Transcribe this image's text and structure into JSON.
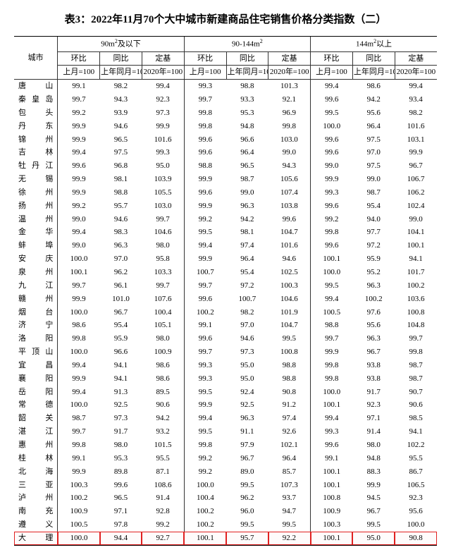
{
  "title": "表3：2022年11月70个大中城市新建商品住宅销售价格分类指数（二）",
  "header": {
    "city": "城市",
    "groups": [
      "90m²及以下",
      "90-144m²",
      "144m²以上"
    ],
    "sub": {
      "mom": "环比",
      "yoy": "同比",
      "base": "定基"
    },
    "line3": {
      "mom": "上月=100",
      "yoy": "上年同月=100",
      "base": "2020年=100"
    }
  },
  "highlight_city": "大 理",
  "style": {
    "background_color": "#ffffff",
    "text_color": "#000000",
    "rule_color": "#333333",
    "highlight_color": "#e02020",
    "title_fontsize": 15,
    "body_fontsize": 11
  },
  "rows": [
    {
      "city": "唐 山",
      "v": [
        "99.1",
        "98.2",
        "99.4",
        "99.3",
        "98.8",
        "101.3",
        "99.4",
        "98.6",
        "99.4"
      ]
    },
    {
      "city": "秦皇岛",
      "v": [
        "99.7",
        "94.3",
        "92.3",
        "99.7",
        "93.3",
        "92.1",
        "99.6",
        "94.2",
        "93.4"
      ]
    },
    {
      "city": "包 头",
      "v": [
        "99.2",
        "93.9",
        "97.3",
        "99.8",
        "95.3",
        "96.9",
        "99.5",
        "95.6",
        "98.2"
      ]
    },
    {
      "city": "丹 东",
      "v": [
        "99.9",
        "94.6",
        "99.9",
        "99.8",
        "94.8",
        "99.8",
        "100.0",
        "96.4",
        "101.6"
      ]
    },
    {
      "city": "锦 州",
      "v": [
        "99.9",
        "96.5",
        "101.6",
        "99.6",
        "96.6",
        "103.0",
        "99.6",
        "97.5",
        "103.1"
      ]
    },
    {
      "city": "吉 林",
      "v": [
        "99.4",
        "97.5",
        "99.3",
        "99.6",
        "96.4",
        "99.0",
        "99.6",
        "97.0",
        "99.9"
      ]
    },
    {
      "city": "牡丹江",
      "v": [
        "99.6",
        "96.8",
        "95.0",
        "98.8",
        "96.5",
        "94.3",
        "99.0",
        "97.5",
        "96.7"
      ]
    },
    {
      "city": "无 锡",
      "v": [
        "99.9",
        "98.1",
        "103.9",
        "99.9",
        "98.7",
        "105.6",
        "99.9",
        "99.0",
        "106.7"
      ]
    },
    {
      "city": "徐 州",
      "v": [
        "99.9",
        "98.8",
        "105.5",
        "99.6",
        "99.0",
        "107.4",
        "99.3",
        "98.7",
        "106.2"
      ]
    },
    {
      "city": "扬 州",
      "v": [
        "99.2",
        "95.7",
        "103.0",
        "99.9",
        "96.3",
        "103.8",
        "99.6",
        "95.4",
        "102.4"
      ]
    },
    {
      "city": "温 州",
      "v": [
        "99.0",
        "94.6",
        "99.7",
        "99.2",
        "94.2",
        "99.6",
        "99.2",
        "94.0",
        "99.0"
      ]
    },
    {
      "city": "金 华",
      "v": [
        "99.4",
        "98.3",
        "104.6",
        "99.5",
        "98.1",
        "104.7",
        "99.8",
        "97.7",
        "104.1"
      ]
    },
    {
      "city": "蚌 埠",
      "v": [
        "99.0",
        "96.3",
        "98.0",
        "99.4",
        "97.4",
        "101.6",
        "99.6",
        "97.2",
        "100.1"
      ]
    },
    {
      "city": "安 庆",
      "v": [
        "100.0",
        "97.0",
        "95.8",
        "99.9",
        "96.4",
        "94.6",
        "100.1",
        "95.9",
        "94.1"
      ]
    },
    {
      "city": "泉 州",
      "v": [
        "100.1",
        "96.2",
        "103.3",
        "100.7",
        "95.4",
        "102.5",
        "100.0",
        "95.2",
        "101.7"
      ]
    },
    {
      "city": "九 江",
      "v": [
        "99.7",
        "96.1",
        "99.7",
        "99.7",
        "97.2",
        "100.3",
        "99.5",
        "96.3",
        "100.2"
      ]
    },
    {
      "city": "赣 州",
      "v": [
        "99.9",
        "101.0",
        "107.6",
        "99.6",
        "100.7",
        "104.6",
        "99.4",
        "100.2",
        "103.6"
      ]
    },
    {
      "city": "烟 台",
      "v": [
        "100.0",
        "96.7",
        "100.4",
        "100.2",
        "98.2",
        "101.9",
        "100.5",
        "97.6",
        "100.8"
      ]
    },
    {
      "city": "济 宁",
      "v": [
        "98.6",
        "95.4",
        "105.1",
        "99.1",
        "97.0",
        "104.7",
        "98.8",
        "95.6",
        "104.8"
      ]
    },
    {
      "city": "洛 阳",
      "v": [
        "99.8",
        "95.9",
        "98.0",
        "99.6",
        "94.6",
        "99.5",
        "99.7",
        "96.3",
        "99.7"
      ]
    },
    {
      "city": "平顶山",
      "v": [
        "100.0",
        "96.6",
        "100.9",
        "99.7",
        "97.3",
        "100.8",
        "99.9",
        "96.7",
        "99.8"
      ]
    },
    {
      "city": "宜 昌",
      "v": [
        "99.4",
        "94.1",
        "98.6",
        "99.3",
        "95.0",
        "98.8",
        "99.8",
        "93.8",
        "98.7"
      ]
    },
    {
      "city": "襄 阳",
      "v": [
        "99.9",
        "94.1",
        "98.6",
        "99.3",
        "95.0",
        "98.8",
        "99.8",
        "93.8",
        "98.7"
      ]
    },
    {
      "city": "岳 阳",
      "v": [
        "99.4",
        "91.3",
        "89.5",
        "99.5",
        "92.4",
        "90.8",
        "100.0",
        "91.7",
        "90.7"
      ]
    },
    {
      "city": "常 德",
      "v": [
        "100.0",
        "92.5",
        "90.6",
        "99.9",
        "92.5",
        "91.2",
        "100.1",
        "92.3",
        "90.6"
      ]
    },
    {
      "city": "韶 关",
      "v": [
        "98.7",
        "97.3",
        "94.2",
        "99.4",
        "96.3",
        "97.4",
        "99.4",
        "97.1",
        "98.5"
      ]
    },
    {
      "city": "湛 江",
      "v": [
        "99.7",
        "91.7",
        "93.2",
        "99.5",
        "91.1",
        "92.6",
        "99.3",
        "91.4",
        "94.1"
      ]
    },
    {
      "city": "惠 州",
      "v": [
        "99.8",
        "98.0",
        "101.5",
        "99.8",
        "97.9",
        "102.1",
        "99.6",
        "98.0",
        "102.2"
      ]
    },
    {
      "city": "桂 林",
      "v": [
        "99.1",
        "95.3",
        "95.5",
        "99.2",
        "96.7",
        "96.4",
        "99.1",
        "94.8",
        "95.5"
      ]
    },
    {
      "city": "北 海",
      "v": [
        "99.9",
        "89.8",
        "87.1",
        "99.2",
        "89.0",
        "85.7",
        "100.1",
        "88.3",
        "86.7"
      ]
    },
    {
      "city": "三 亚",
      "v": [
        "100.3",
        "99.6",
        "108.6",
        "100.0",
        "99.5",
        "107.3",
        "100.1",
        "99.9",
        "106.5"
      ]
    },
    {
      "city": "泸 州",
      "v": [
        "100.2",
        "96.5",
        "91.4",
        "100.4",
        "96.2",
        "93.7",
        "100.8",
        "94.5",
        "92.3"
      ]
    },
    {
      "city": "南 充",
      "v": [
        "100.9",
        "97.1",
        "92.8",
        "100.2",
        "96.0",
        "94.7",
        "100.9",
        "96.7",
        "95.6"
      ]
    },
    {
      "city": "遵 义",
      "v": [
        "100.5",
        "97.8",
        "99.2",
        "100.2",
        "99.5",
        "99.5",
        "100.3",
        "99.5",
        "100.0"
      ]
    },
    {
      "city": "大 理",
      "v": [
        "100.0",
        "94.4",
        "92.7",
        "100.1",
        "95.7",
        "92.2",
        "100.1",
        "95.0",
        "90.8"
      ]
    }
  ]
}
